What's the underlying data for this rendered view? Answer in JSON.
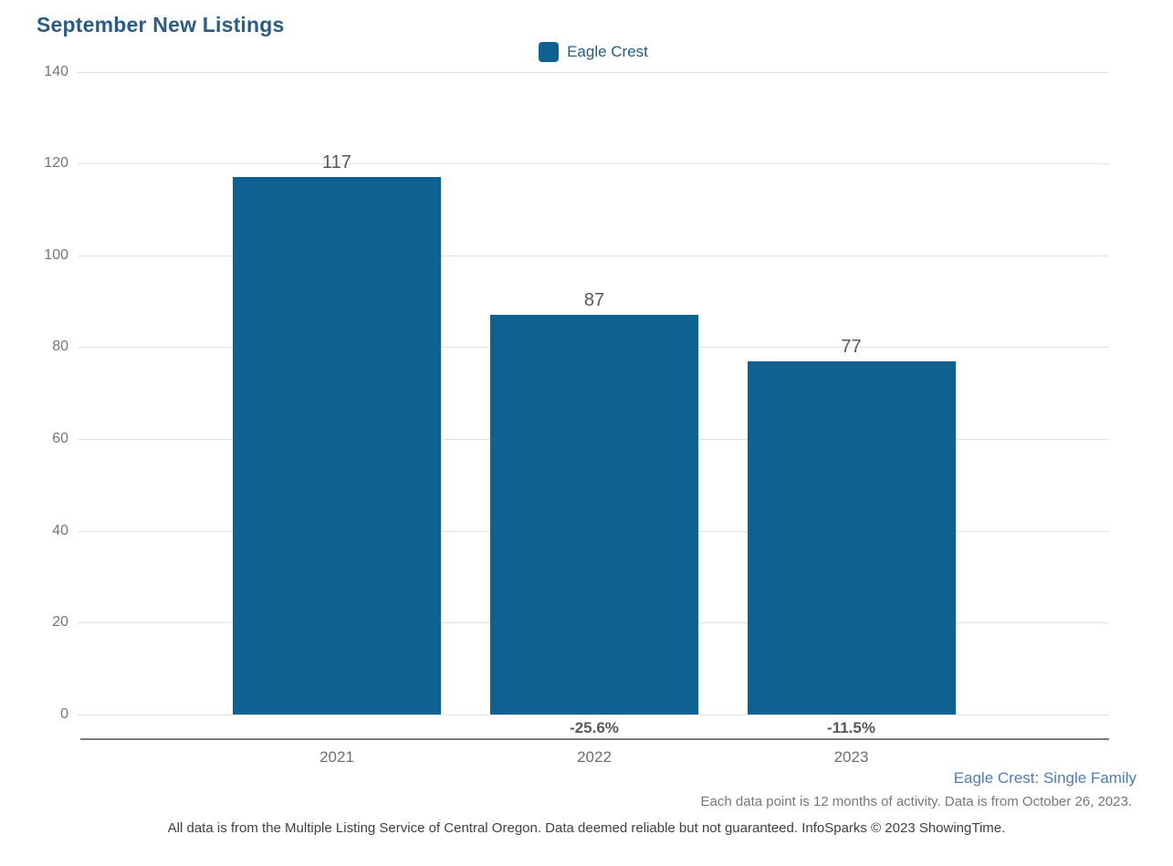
{
  "chart_data": {
    "type": "bar",
    "title": "September New Listings",
    "categories": [
      "2021",
      "2022",
      "2023"
    ],
    "series": [
      {
        "name": "Eagle Crest",
        "values": [
          117,
          87,
          77
        ]
      }
    ],
    "value_labels": [
      "117",
      "87",
      "77"
    ],
    "pct_change_labels": [
      "",
      "-25.6%",
      "-11.5%"
    ],
    "yticks": [
      0,
      20,
      40,
      60,
      80,
      100,
      120,
      140
    ],
    "ylim": [
      0,
      140
    ],
    "xlabel": "",
    "ylabel": "",
    "grid": true,
    "legend_position": "top-center",
    "bar_color": "#0f6191"
  },
  "legend": {
    "label": "Eagle Crest",
    "swatch_color": "#0f6191"
  },
  "footnotes": {
    "series_note": "Eagle Crest: Single Family",
    "data_note": "Each data point is 12 months of activity. Data is from October 26, 2023.",
    "disclaimer": "All data is from the Multiple Listing Service of Central Oregon. Data deemed reliable but not guaranteed. InfoSparks © 2023 ShowingTime."
  },
  "colors": {
    "bar": "#0f6191",
    "title": "#2b5c84",
    "legend_text": "#1f5c87",
    "tick_text": "#757575",
    "gridline": "#e2e2e2",
    "value_text": "#58595b",
    "axis_line": "#7c7c7e",
    "series_note_text": "#4f7cb0"
  }
}
